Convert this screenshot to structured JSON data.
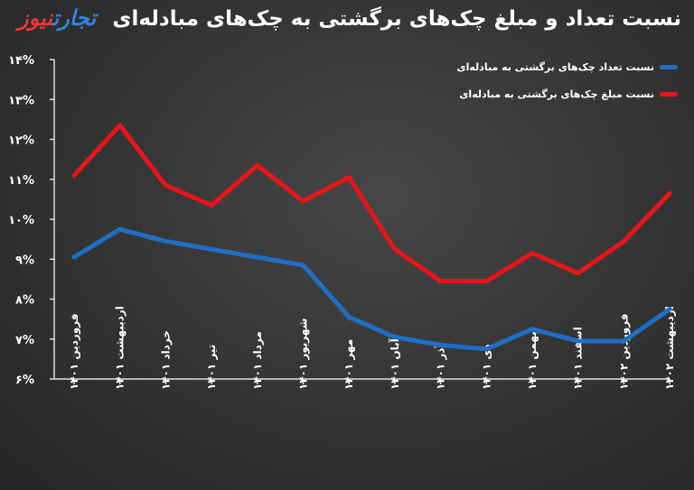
{
  "brand": {
    "part1": "تجارت",
    "part2": "نیوز"
  },
  "chart_data": {
    "type": "line",
    "title": "نسبت تعداد و مبلغ چک‌های برگشتی به چک‌های مبادله‌ای",
    "categories": [
      "فروردین ۱۴۰۱",
      "اردیبهشت ۱۴۰۱",
      "خرداد ۱۴۰۱",
      "تیر ۱۴۰۱",
      "مرداد ۱۴۰۱",
      "شهریور ۱۴۰۱",
      "مهر ۱۴۰۱",
      "آبان ۱۴۰۱",
      "آذر ۱۴۰۱",
      "دی ۱۴۰۱",
      "بهمن ۱۴۰۱",
      "اسفند ۱۴۰۱",
      "فروردین ۱۴۰۲",
      "اردیبهشت ۱۴۰۲"
    ],
    "y_ticks": [
      "۶%",
      "۷%",
      "۸%",
      "۹%",
      "۱۰%",
      "۱۱%",
      "۱۲%",
      "۱۳%",
      "۱۴%"
    ],
    "ylim": [
      6,
      14
    ],
    "series": [
      {
        "name": "نسبت تعداد چک‌های برگشتی به مبادله‌ای",
        "color": "#1f6fc6",
        "values": [
          9.05,
          9.75,
          9.45,
          9.25,
          9.05,
          8.85,
          7.55,
          7.05,
          6.85,
          6.75,
          7.25,
          6.95,
          6.95,
          7.75
        ]
      },
      {
        "name": "نسبت مبلغ چک‌های برگشتی به مبادله‌ای",
        "color": "#e8151a",
        "values": [
          11.1,
          12.35,
          10.85,
          10.35,
          11.35,
          10.45,
          11.05,
          9.25,
          8.45,
          8.45,
          9.15,
          8.65,
          9.45,
          10.65
        ]
      }
    ],
    "legend_position": "top-right",
    "grid": false
  }
}
